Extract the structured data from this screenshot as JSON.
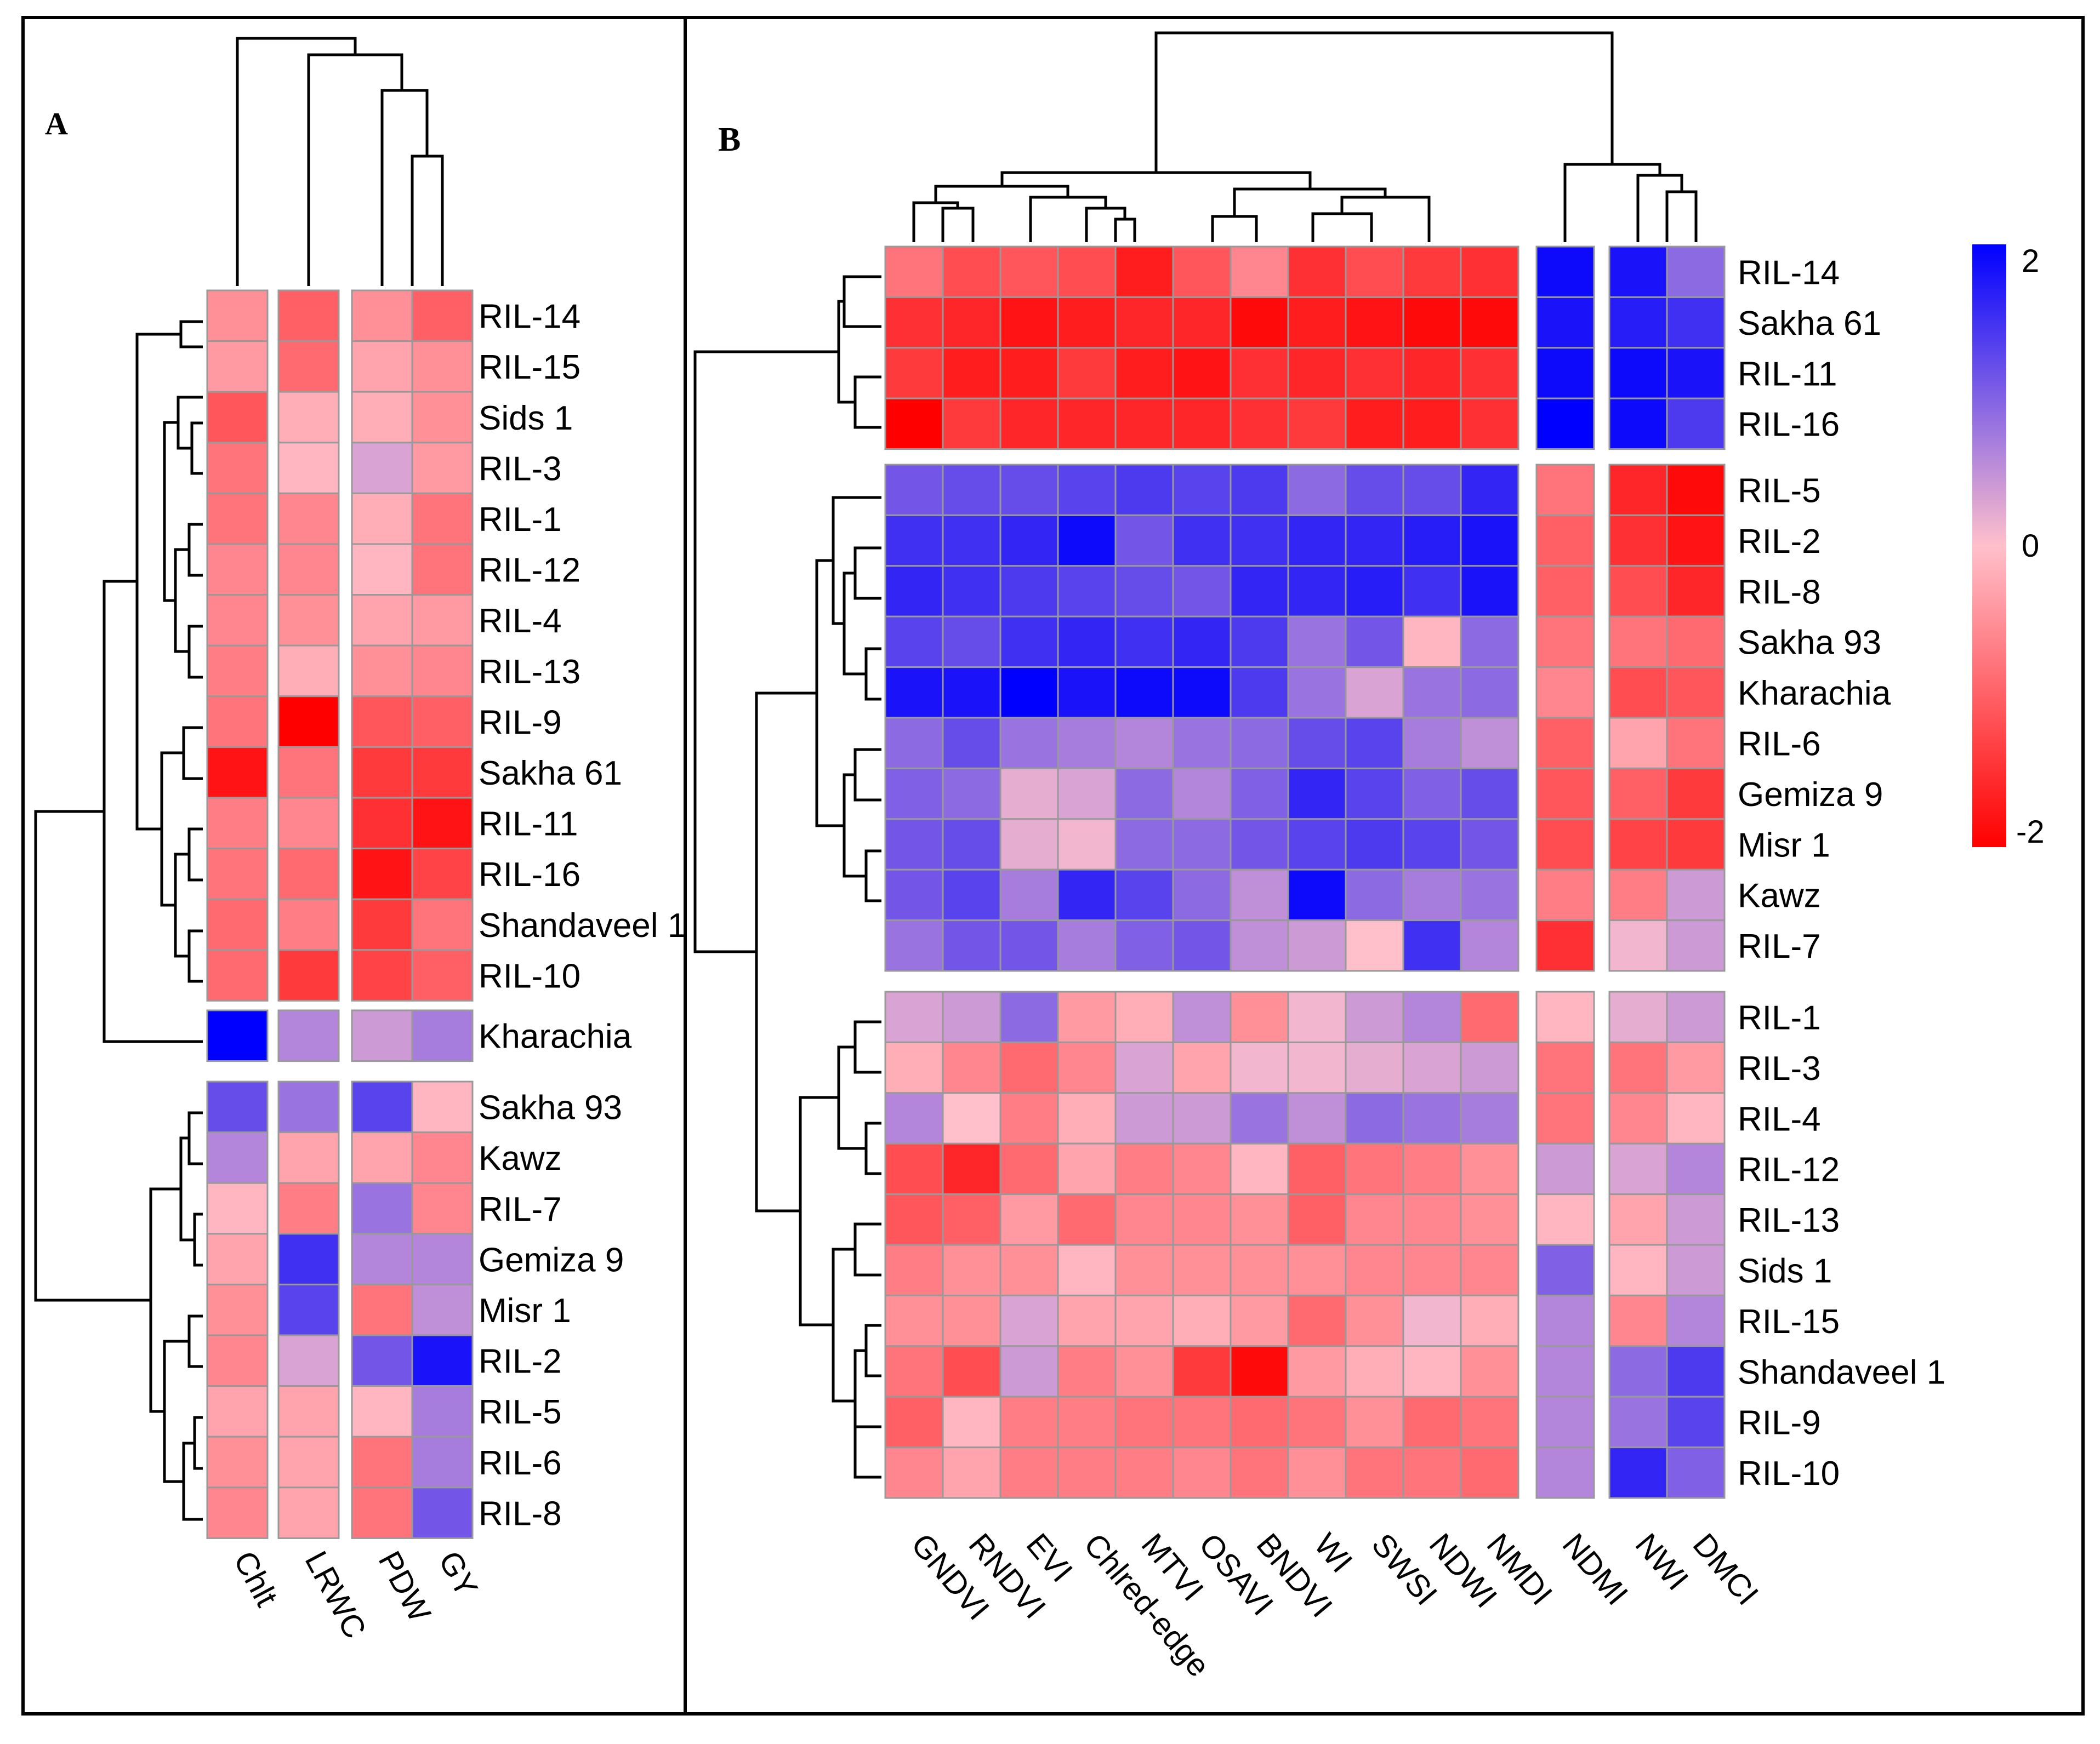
{
  "panels": {
    "a_label": "A",
    "b_label": "B"
  },
  "colors": {
    "low": "#ff0000",
    "mid": "#ffc0cb",
    "high": "#0000ff",
    "cell_border": "#999999"
  },
  "legend": {
    "max_label": "2",
    "mid_label": "0",
    "min_label": "-2"
  },
  "chart_data": [
    {
      "type": "heatmap",
      "panel": "A",
      "title": "",
      "columns": [
        "Chlt",
        "LRWC",
        "PDW",
        "GY"
      ],
      "row_groups": [
        [
          "RIL-14",
          "RIL-15",
          "Sids 1",
          "RIL-3",
          "RIL-1",
          "RIL-12",
          "RIL-4",
          "RIL-13",
          "RIL-9",
          "Sakha 61",
          "RIL-11",
          "RIL-16",
          "Shandaveel 1",
          "RIL-10"
        ],
        [
          "Kharachia"
        ],
        [
          "Sakha 93",
          "Kawz",
          "RIL-7",
          "Gemiza 9",
          "Misr 1",
          "RIL-2",
          "RIL-5",
          "RIL-6",
          "RIL-8"
        ]
      ],
      "column_groups": [
        [
          0
        ],
        [
          1
        ],
        [
          2,
          3
        ]
      ],
      "values": [
        [
          -0.5,
          -1.0,
          -0.5,
          -1.0
        ],
        [
          -0.4,
          -0.9,
          -0.3,
          -0.5
        ],
        [
          -1.1,
          -0.2,
          -0.2,
          -0.5
        ],
        [
          -0.8,
          -0.1,
          0.3,
          -0.4
        ],
        [
          -0.8,
          -0.6,
          -0.2,
          -0.8
        ],
        [
          -0.6,
          -0.6,
          -0.1,
          -0.8
        ],
        [
          -0.6,
          -0.5,
          -0.3,
          -0.4
        ],
        [
          -0.7,
          -0.2,
          -0.5,
          -0.6
        ],
        [
          -0.8,
          -2.0,
          -1.1,
          -1.0
        ],
        [
          -1.8,
          -0.8,
          -1.4,
          -1.4
        ],
        [
          -0.7,
          -0.6,
          -1.5,
          -1.8
        ],
        [
          -0.8,
          -0.9,
          -1.8,
          -1.3
        ],
        [
          -0.9,
          -0.7,
          -1.4,
          -0.8
        ],
        [
          -0.9,
          -1.4,
          -1.3,
          -1.0
        ],
        [
          2.0,
          0.6,
          0.4,
          0.7
        ],
        [
          1.2,
          0.8,
          1.3,
          -0.1
        ],
        [
          0.6,
          -0.3,
          -0.3,
          -0.6
        ],
        [
          -0.1,
          -0.7,
          0.8,
          -0.6
        ],
        [
          -0.3,
          1.5,
          0.6,
          0.6
        ],
        [
          -0.5,
          1.3,
          -0.8,
          0.5
        ],
        [
          -0.6,
          0.3,
          1.1,
          1.8
        ],
        [
          -0.3,
          -0.3,
          -0.1,
          0.7
        ],
        [
          -0.5,
          -0.3,
          -0.8,
          0.7
        ],
        [
          -0.6,
          -0.3,
          -0.8,
          1.1
        ]
      ],
      "color_range": [
        -2,
        2
      ]
    },
    {
      "type": "heatmap",
      "panel": "B",
      "title": "",
      "columns": [
        "GNDVI",
        "RNDVI",
        "EVI",
        "Chlred-edge",
        "MTVI",
        "OSAVI",
        "BNDVI",
        "WI",
        "SWSI",
        "NDWI",
        "NMDI",
        "NDMI",
        "NWI",
        "DMCI"
      ],
      "row_groups": [
        [
          "RIL-14",
          "Sakha 61",
          "RIL-11",
          "RIL-16"
        ],
        [
          "RIL-5",
          "RIL-2",
          "RIL-8",
          "Sakha 93",
          "Kharachia",
          "RIL-6",
          "Gemiza 9",
          "Misr 1",
          "Kawz",
          "RIL-7"
        ],
        [
          "RIL-1",
          "RIL-3",
          "RIL-4",
          "RIL-12",
          "RIL-13",
          "Sids 1",
          "RIL-15",
          "Shandaveel 1",
          "RIL-9",
          "RIL-10"
        ]
      ],
      "column_groups": [
        [
          0,
          1,
          2,
          3,
          4,
          5,
          6,
          7,
          8,
          9,
          10
        ],
        [
          11
        ],
        [
          12,
          13
        ]
      ],
      "values": [
        [
          -0.8,
          -1.2,
          -1.1,
          -1.2,
          -1.7,
          -1.1,
          -0.6,
          -1.5,
          -1.2,
          -1.4,
          -1.5,
          1.9,
          1.8,
          0.9
        ],
        [
          -1.5,
          -1.6,
          -1.8,
          -1.7,
          -1.6,
          -1.6,
          -1.9,
          -1.7,
          -1.8,
          -1.9,
          -1.9,
          1.8,
          1.7,
          1.5
        ],
        [
          -1.4,
          -1.7,
          -1.7,
          -1.4,
          -1.7,
          -1.8,
          -1.5,
          -1.6,
          -1.5,
          -1.6,
          -1.5,
          1.9,
          1.9,
          1.8
        ],
        [
          -2.0,
          -1.4,
          -1.6,
          -1.6,
          -1.6,
          -1.6,
          -1.5,
          -1.4,
          -1.7,
          -1.7,
          -1.5,
          2.0,
          1.9,
          1.4
        ],
        [
          1.1,
          1.2,
          1.2,
          1.3,
          1.4,
          1.3,
          1.4,
          0.9,
          1.2,
          1.2,
          1.6,
          -0.8,
          -1.6,
          -1.9
        ],
        [
          1.5,
          1.5,
          1.6,
          1.9,
          1.1,
          1.5,
          1.5,
          1.6,
          1.6,
          1.7,
          1.8,
          -1.0,
          -1.5,
          -1.8
        ],
        [
          1.6,
          1.5,
          1.4,
          1.3,
          1.2,
          1.1,
          1.6,
          1.6,
          1.7,
          1.5,
          1.8,
          -1.0,
          -1.2,
          -1.6
        ],
        [
          1.3,
          1.2,
          1.5,
          1.6,
          1.5,
          1.6,
          1.4,
          0.8,
          1.1,
          -0.1,
          0.9,
          -0.8,
          -0.8,
          -0.9
        ],
        [
          1.8,
          1.8,
          2.0,
          1.8,
          1.9,
          1.9,
          1.4,
          0.8,
          0.3,
          0.8,
          0.9,
          -0.6,
          -1.2,
          -1.1
        ],
        [
          0.9,
          1.2,
          0.8,
          0.7,
          0.6,
          0.8,
          0.9,
          1.2,
          1.3,
          0.7,
          0.5,
          -1.0,
          -0.3,
          -0.8
        ],
        [
          1.0,
          0.9,
          0.2,
          0.3,
          0.9,
          0.6,
          1.0,
          1.6,
          1.3,
          1.0,
          1.2,
          -1.1,
          -1.0,
          -1.4
        ],
        [
          1.1,
          1.2,
          0.2,
          0.1,
          0.9,
          0.9,
          1.1,
          1.3,
          1.4,
          1.3,
          1.1,
          -1.2,
          -1.3,
          -1.4
        ],
        [
          1.1,
          1.3,
          0.7,
          1.6,
          1.3,
          0.9,
          0.5,
          1.9,
          0.9,
          0.7,
          0.8,
          -0.7,
          -0.7,
          0.4
        ],
        [
          0.8,
          1.1,
          1.1,
          0.7,
          1.0,
          1.1,
          0.5,
          0.4,
          0.0,
          1.5,
          0.6,
          -1.5,
          0.1,
          0.4
        ],
        [
          0.3,
          0.4,
          0.9,
          -0.4,
          -0.2,
          0.5,
          -0.5,
          0.1,
          0.4,
          0.6,
          -0.9,
          -0.1,
          0.2,
          0.4
        ],
        [
          -0.2,
          -0.6,
          -0.9,
          -0.6,
          0.3,
          -0.3,
          0.1,
          0.1,
          0.2,
          0.3,
          0.4,
          -0.8,
          -0.8,
          -0.4
        ],
        [
          0.6,
          0.0,
          -0.7,
          -0.2,
          0.4,
          0.4,
          0.8,
          0.5,
          0.9,
          0.8,
          0.7,
          -0.8,
          -0.6,
          -0.1
        ],
        [
          -1.2,
          -1.6,
          -0.9,
          -0.3,
          -0.7,
          -0.6,
          -0.1,
          -1.0,
          -0.8,
          -0.7,
          -0.5,
          0.4,
          0.3,
          0.6
        ],
        [
          -1.1,
          -1.0,
          -0.4,
          -0.9,
          -0.6,
          -0.6,
          -0.5,
          -1.0,
          -0.6,
          -0.6,
          -0.5,
          -0.1,
          -0.3,
          0.4
        ],
        [
          -0.7,
          -0.5,
          -0.5,
          -0.1,
          -0.5,
          -0.5,
          -0.5,
          -0.5,
          -0.6,
          -0.6,
          -0.6,
          1.0,
          -0.1,
          0.4
        ],
        [
          -0.5,
          -0.5,
          0.3,
          -0.3,
          -0.3,
          -0.2,
          -0.4,
          -0.9,
          -0.5,
          0.1,
          -0.2,
          0.6,
          -0.6,
          0.6
        ],
        [
          -0.8,
          -1.2,
          0.4,
          -0.7,
          -0.5,
          -1.4,
          -1.9,
          -0.4,
          -0.2,
          -0.1,
          -0.5,
          0.6,
          0.9,
          1.4
        ],
        [
          -1.0,
          -0.1,
          -0.7,
          -0.7,
          -0.8,
          -0.8,
          -0.9,
          -0.8,
          -0.5,
          -0.9,
          -0.8,
          0.6,
          0.8,
          1.3
        ],
        [
          -0.6,
          -0.3,
          -0.7,
          -0.7,
          -0.7,
          -0.6,
          -0.8,
          -0.5,
          -0.8,
          -0.8,
          -0.9,
          0.6,
          1.6,
          1.0
        ]
      ],
      "color_range": [
        -2,
        2
      ]
    }
  ]
}
